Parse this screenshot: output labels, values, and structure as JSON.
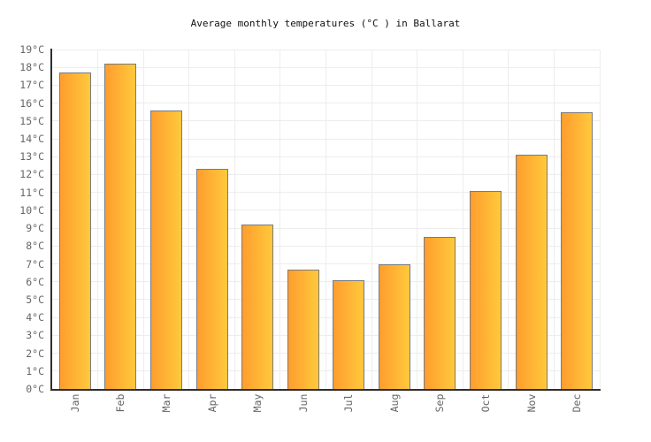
{
  "chart_data": {
    "type": "bar",
    "title": "Average monthly temperatures (°C ) in Ballarat",
    "categories": [
      "Jan",
      "Feb",
      "Mar",
      "Apr",
      "May",
      "Jun",
      "Jul",
      "Aug",
      "Sep",
      "Oct",
      "Nov",
      "Dec"
    ],
    "values": [
      17.7,
      18.2,
      15.6,
      12.3,
      9.2,
      6.7,
      6.1,
      7.0,
      8.5,
      11.1,
      13.1,
      15.5
    ],
    "unit": "°C",
    "xlabel": "",
    "ylabel": "",
    "ylim": [
      0,
      19
    ],
    "ytick_step": 1,
    "ytick_labels": [
      "0°C",
      "1°C",
      "2°C",
      "3°C",
      "4°C",
      "5°C",
      "6°C",
      "7°C",
      "8°C",
      "9°C",
      "10°C",
      "11°C",
      "12°C",
      "13°C",
      "14°C",
      "15°C",
      "16°C",
      "17°C",
      "18°C",
      "19°C"
    ],
    "grid": true,
    "legend": false,
    "colors": {
      "bar_gradient_left": "#ff9d2e",
      "bar_gradient_right": "#ffc93c",
      "bar_border": "#7a7a7a",
      "gridline": "#ededed",
      "axis": "#2e2e2e",
      "tick_label": "#666666",
      "title": "#111111",
      "background": "#ffffff"
    }
  }
}
